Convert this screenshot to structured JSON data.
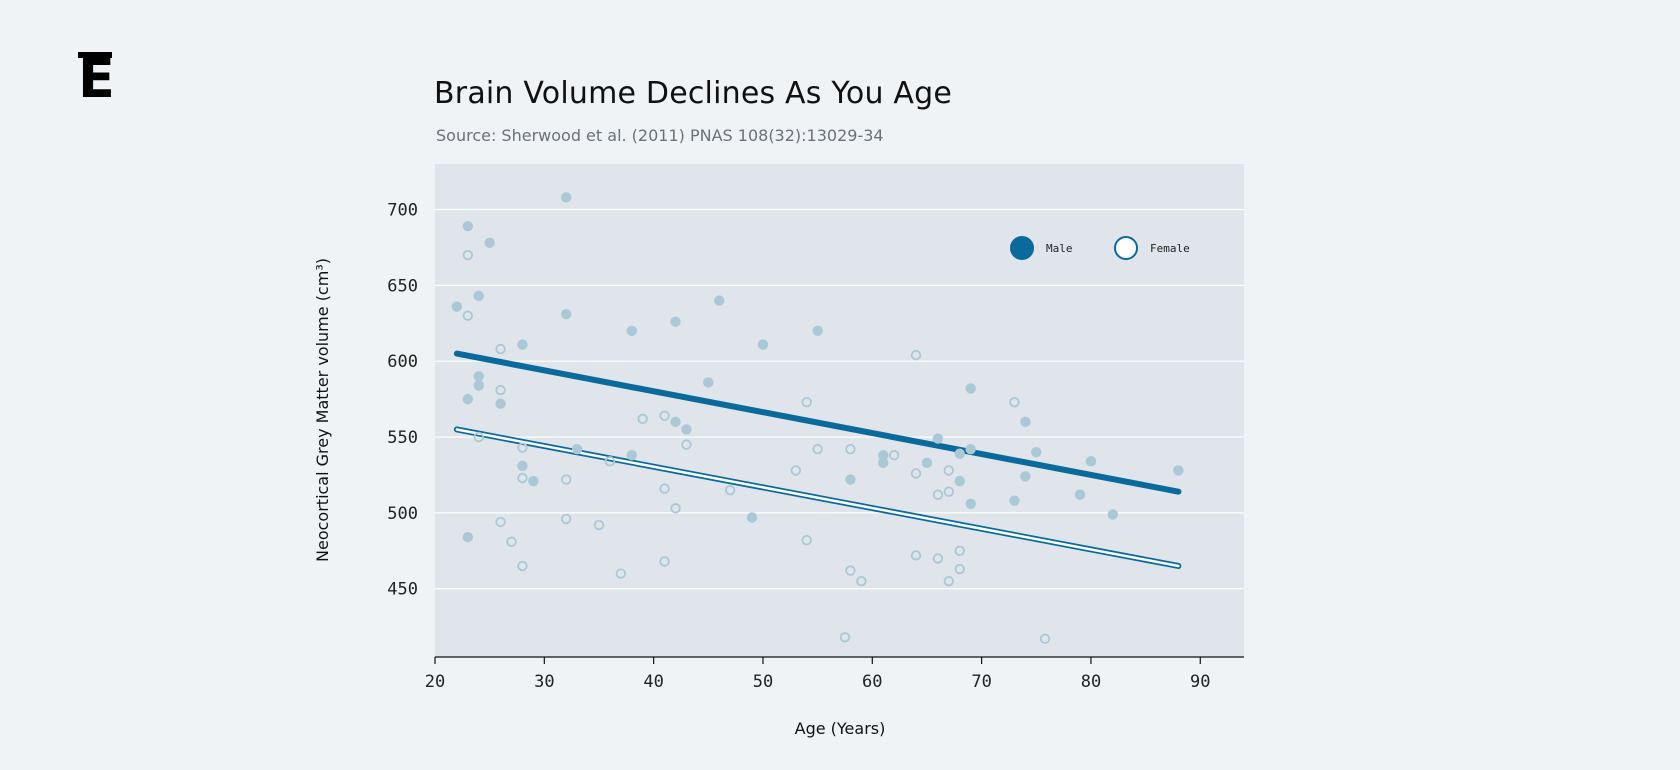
{
  "page": {
    "logo": "E",
    "title": "Brain Volume Declines As You Age",
    "subtitle": "Source: Sherwood et al. (2011) PNAS 108(32):13029-34"
  },
  "colors": {
    "background": "#eff3f6",
    "plot_background": "#dfe5ea",
    "male_line": "#0b6a9c",
    "point": "#aac8d6",
    "gridline": "#ffffff"
  },
  "chart_data": {
    "type": "scatter",
    "title": "Brain Volume Declines As You Age",
    "subtitle": "Source: Sherwood et al. (2011) PNAS 108(32):13029-34",
    "xlabel": "Age (Years)",
    "ylabel": "Neocortical Grey Matter volume (cm³)",
    "xlim": [
      20,
      94
    ],
    "ylim": [
      405,
      730
    ],
    "xticks": [
      20,
      30,
      40,
      50,
      60,
      70,
      80,
      90
    ],
    "yticks": [
      450,
      500,
      550,
      600,
      650,
      700
    ],
    "grid": "horizontal",
    "legend_position": "top-right",
    "series": [
      {
        "name": "Male",
        "marker": "filled",
        "points": [
          [
            32,
            708
          ],
          [
            23,
            689
          ],
          [
            25,
            678
          ],
          [
            24,
            643
          ],
          [
            22,
            636
          ],
          [
            32,
            631
          ],
          [
            46,
            640
          ],
          [
            42,
            626
          ],
          [
            38,
            620
          ],
          [
            55,
            620
          ],
          [
            28,
            611
          ],
          [
            50,
            611
          ],
          [
            24,
            590
          ],
          [
            24,
            584
          ],
          [
            45,
            586
          ],
          [
            23,
            575
          ],
          [
            26,
            572
          ],
          [
            69,
            582
          ],
          [
            42,
            560
          ],
          [
            43,
            555
          ],
          [
            74,
            560
          ],
          [
            66,
            549
          ],
          [
            33,
            542
          ],
          [
            38,
            538
          ],
          [
            61,
            538
          ],
          [
            61,
            533
          ],
          [
            65,
            533
          ],
          [
            69,
            542
          ],
          [
            68,
            539
          ],
          [
            75,
            540
          ],
          [
            80,
            534
          ],
          [
            28,
            531
          ],
          [
            29,
            521
          ],
          [
            58,
            522
          ],
          [
            68,
            521
          ],
          [
            74,
            524
          ],
          [
            88,
            528
          ],
          [
            69,
            506
          ],
          [
            73,
            508
          ],
          [
            79,
            512
          ],
          [
            82,
            499
          ],
          [
            49,
            497
          ],
          [
            23,
            484
          ]
        ],
        "trend": [
          [
            22,
            605
          ],
          [
            88,
            514
          ]
        ]
      },
      {
        "name": "Female",
        "marker": "hollow",
        "points": [
          [
            23,
            670
          ],
          [
            23,
            630
          ],
          [
            26,
            608
          ],
          [
            26,
            581
          ],
          [
            64,
            604
          ],
          [
            54,
            573
          ],
          [
            73,
            573
          ],
          [
            39,
            562
          ],
          [
            41,
            564
          ],
          [
            24,
            550
          ],
          [
            28,
            543
          ],
          [
            43,
            545
          ],
          [
            55,
            542
          ],
          [
            58,
            542
          ],
          [
            62,
            538
          ],
          [
            36,
            534
          ],
          [
            53,
            528
          ],
          [
            64,
            526
          ],
          [
            67,
            528
          ],
          [
            28,
            523
          ],
          [
            32,
            522
          ],
          [
            41,
            516
          ],
          [
            47,
            515
          ],
          [
            66,
            512
          ],
          [
            67,
            514
          ],
          [
            42,
            503
          ],
          [
            26,
            494
          ],
          [
            32,
            496
          ],
          [
            35,
            492
          ],
          [
            27,
            481
          ],
          [
            54,
            482
          ],
          [
            41,
            468
          ],
          [
            28,
            465
          ],
          [
            64,
            472
          ],
          [
            66,
            470
          ],
          [
            68,
            475
          ],
          [
            37,
            460
          ],
          [
            58,
            462
          ],
          [
            68,
            463
          ],
          [
            59,
            455
          ],
          [
            67,
            455
          ],
          [
            57.5,
            418
          ],
          [
            75.8,
            417
          ]
        ],
        "trend": [
          [
            22,
            555
          ],
          [
            88,
            465
          ]
        ]
      }
    ]
  }
}
